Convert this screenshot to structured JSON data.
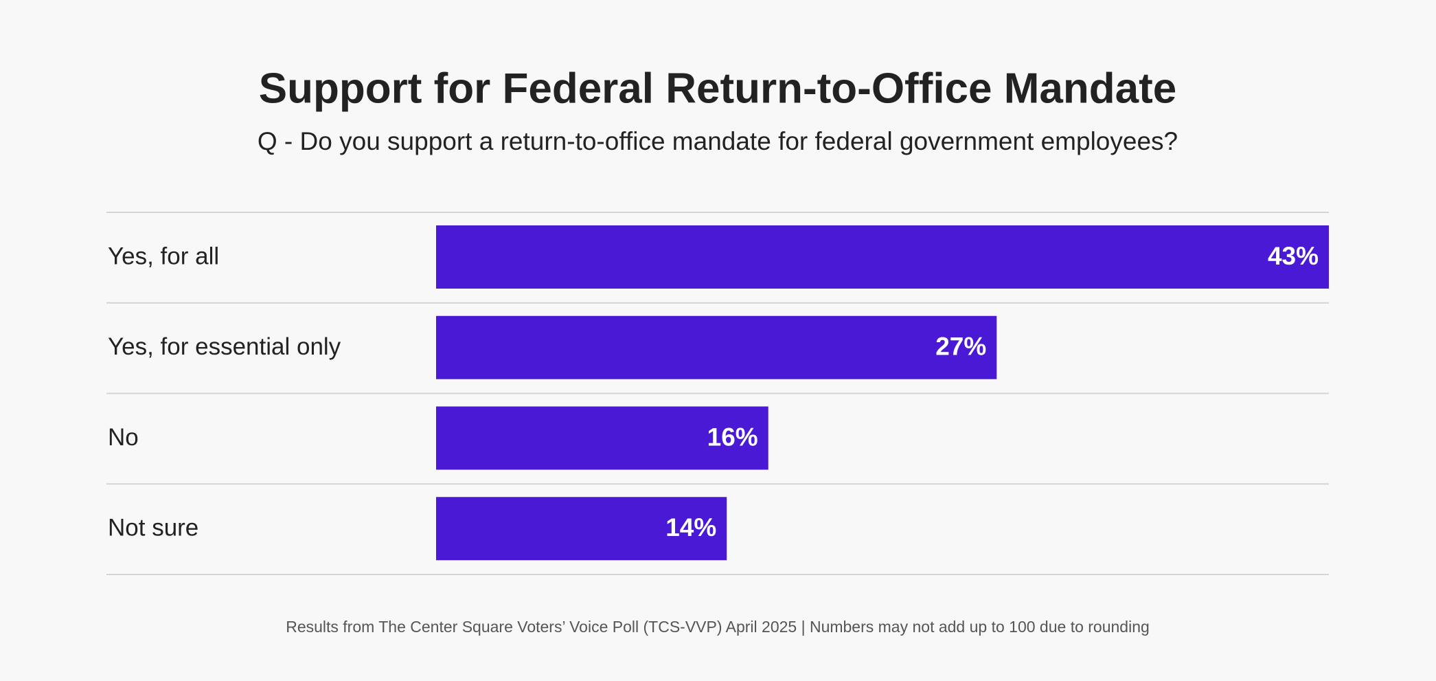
{
  "chart_data": {
    "type": "bar",
    "title": "Support for Federal Return-to-Office Mandate",
    "subtitle": "Q - Do you support a return-to-office mandate for federal government employees?",
    "categories": [
      "Yes, for all",
      "Yes, for essential only",
      "No",
      "Not sure"
    ],
    "values": [
      43,
      27,
      16,
      14
    ],
    "value_labels": [
      "43%",
      "27%",
      "16%",
      "14%"
    ],
    "color": "#4a19d6",
    "note": "Results from The Center Square Voters’ Voice Poll (TCS-VVP) April 2025 | Numbers may not add up to 100 due to rounding"
  }
}
